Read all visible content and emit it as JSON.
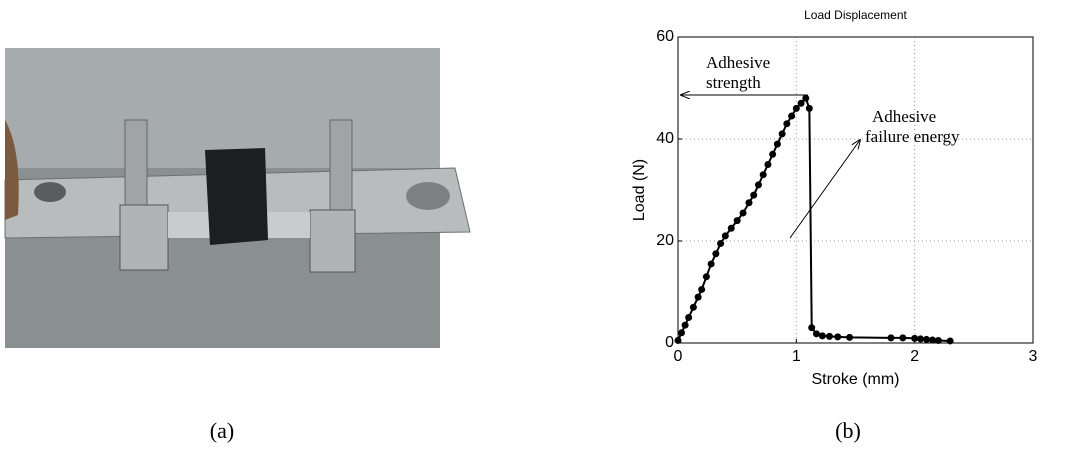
{
  "chart_data": {
    "type": "line",
    "title": "Load Displacement",
    "xlabel": "Stroke (mm)",
    "ylabel": "Load (N)",
    "x": [
      0,
      0.03,
      0.06,
      0.09,
      0.13,
      0.17,
      0.2,
      0.24,
      0.28,
      0.32,
      0.36,
      0.4,
      0.45,
      0.5,
      0.55,
      0.6,
      0.64,
      0.68,
      0.72,
      0.76,
      0.8,
      0.84,
      0.88,
      0.92,
      0.96,
      1.0,
      1.04,
      1.08,
      1.11,
      1.13,
      1.17,
      1.22,
      1.28,
      1.35,
      1.45,
      1.8,
      1.9,
      2.0,
      2.05,
      2.1,
      2.15,
      2.2,
      2.3
    ],
    "values": [
      0.5,
      2,
      3.5,
      5,
      7,
      9,
      10.5,
      13,
      15.5,
      17.5,
      19.5,
      21,
      22.5,
      24,
      25.5,
      27.5,
      29,
      31,
      33,
      35,
      37,
      39,
      41,
      43,
      44.5,
      46,
      47,
      48,
      46,
      3,
      1.8,
      1.4,
      1.3,
      1.2,
      1.1,
      1,
      1,
      0.9,
      0.8,
      0.7,
      0.6,
      0.5,
      0.4
    ],
    "color": "#000000",
    "xlim": [
      0,
      3
    ],
    "ylim": [
      0,
      60
    ],
    "xticks": [
      0,
      1,
      2,
      3
    ],
    "yticks": [
      0,
      20,
      40,
      60
    ],
    "grid": true,
    "annotations": [
      {
        "lines": [
          "Adhesive",
          "strength"
        ]
      },
      {
        "lines": [
          "Adhesive",
          "failure energy"
        ]
      }
    ]
  },
  "captions": [
    "(a)",
    "(b)"
  ]
}
